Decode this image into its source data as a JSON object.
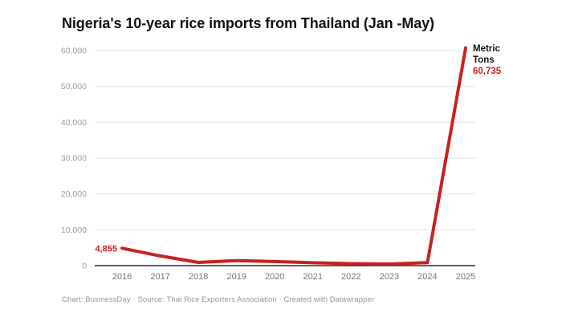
{
  "title": "Nigeria's 10-year rice imports from Thailand (Jan -May)",
  "footer": "Chart: BusinessDay · Source: Thai Rice Exporters Association · Created with Datawrapper",
  "annotations": {
    "first_value": "4,855",
    "unit_lines": [
      "Metric",
      "Tons"
    ],
    "last_value": "60,735"
  },
  "colors": {
    "line": "#c9211e",
    "title": "#111111",
    "annotation_text": "#111111",
    "grid": "#e2e2e2",
    "baseline": "#2a2a2a",
    "y_label": "#9d9d9d",
    "x_label": "#757575",
    "footer": "#949494",
    "background": "#ffffff"
  },
  "chart_data": {
    "type": "line",
    "title": "Nigeria's 10-year rice imports from Thailand (Jan -May)",
    "x": [
      2016,
      2017,
      2018,
      2019,
      2020,
      2021,
      2022,
      2023,
      2024,
      2025
    ],
    "x_labels": [
      "2016",
      "2017",
      "2018",
      "2019",
      "2020",
      "2021",
      "2022",
      "2023",
      "2024",
      "2025"
    ],
    "values": [
      4855,
      2700,
      900,
      1400,
      1150,
      800,
      550,
      450,
      850,
      60735
    ],
    "labeled_points": {
      "2016": 4855,
      "2025": 60735
    },
    "xlabel": "",
    "ylabel": "Metric Tons",
    "ylim": [
      0,
      60000
    ],
    "yticks": [
      0,
      10000,
      20000,
      30000,
      40000,
      50000,
      60000
    ],
    "ytick_labels": [
      "0",
      "10,000",
      "20,000",
      "30,000",
      "40,000",
      "50,000",
      "60,000"
    ],
    "grid": "horizontal",
    "legend": "none"
  }
}
